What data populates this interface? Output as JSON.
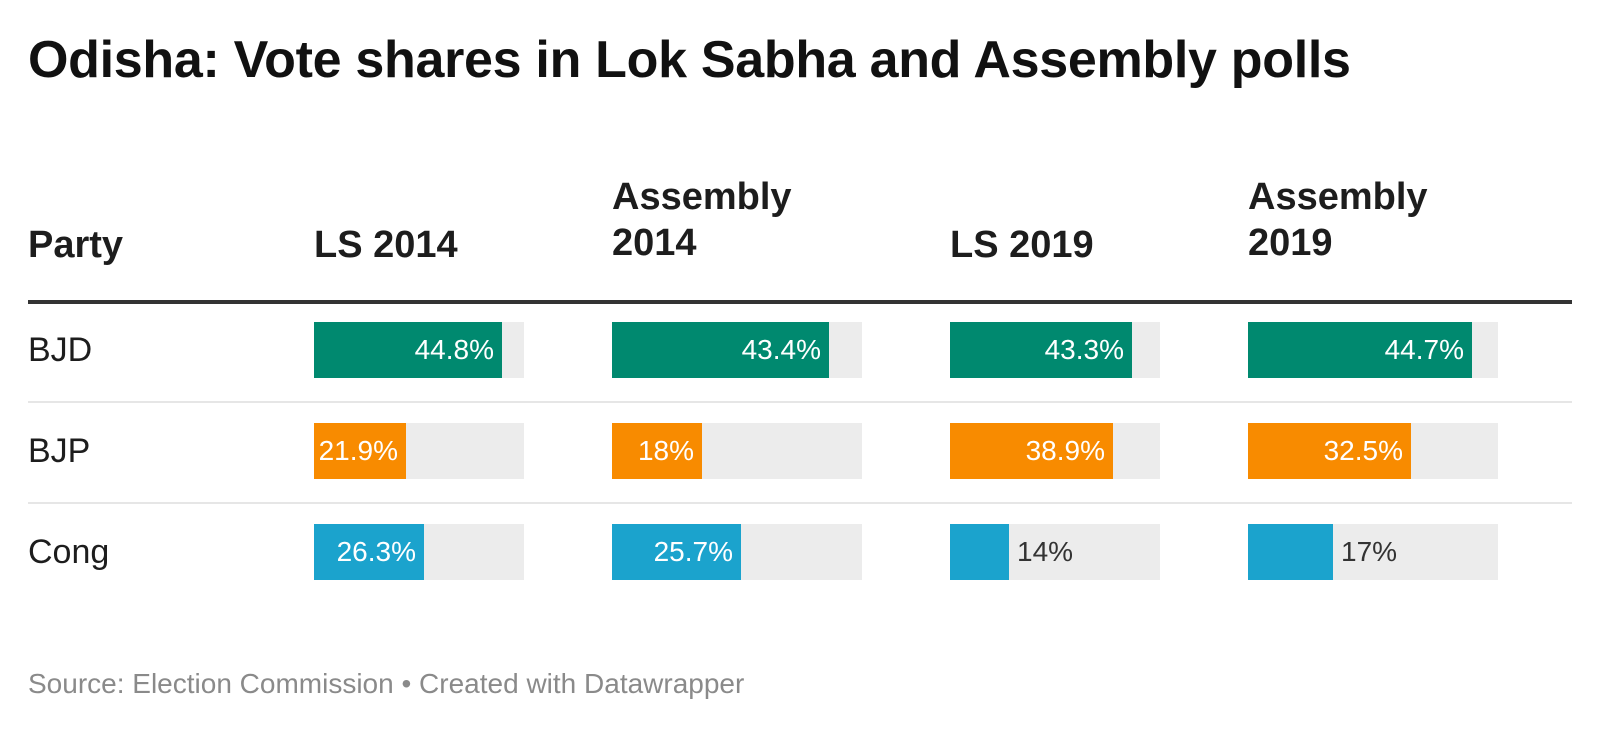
{
  "title": "Odisha: Vote shares in Lok Sabha and Assembly polls",
  "headers": {
    "party": "Party",
    "ls2014": "LS 2014",
    "asm2014_line1": "Assembly",
    "asm2014_line2": "2014",
    "ls2019": "LS 2019",
    "asm2019_line1": "Assembly",
    "asm2019_line2": "2019"
  },
  "colors": {
    "BJD": "#00896f",
    "BJP": "#f88b00",
    "Cong": "#1ba3cd",
    "track": "#ececec"
  },
  "footer": "Source: Election Commission • Created with Datawrapper",
  "chart_data": {
    "type": "table",
    "value_scale_max": 50,
    "columns": [
      "LS 2014",
      "Assembly 2014",
      "LS 2019",
      "Assembly 2019"
    ],
    "rows": [
      {
        "party": "BJD",
        "values": [
          44.8,
          43.4,
          43.3,
          44.7
        ],
        "labels": [
          "44.8%",
          "43.4%",
          "43.3%",
          "44.7%"
        ]
      },
      {
        "party": "BJP",
        "values": [
          21.9,
          18,
          38.9,
          32.5
        ],
        "labels": [
          "21.9%",
          "18%",
          "38.9%",
          "32.5%"
        ]
      },
      {
        "party": "Cong",
        "values": [
          26.3,
          25.7,
          14,
          17
        ],
        "labels": [
          "26.3%",
          "25.7%",
          "14%",
          "17%"
        ]
      }
    ]
  }
}
